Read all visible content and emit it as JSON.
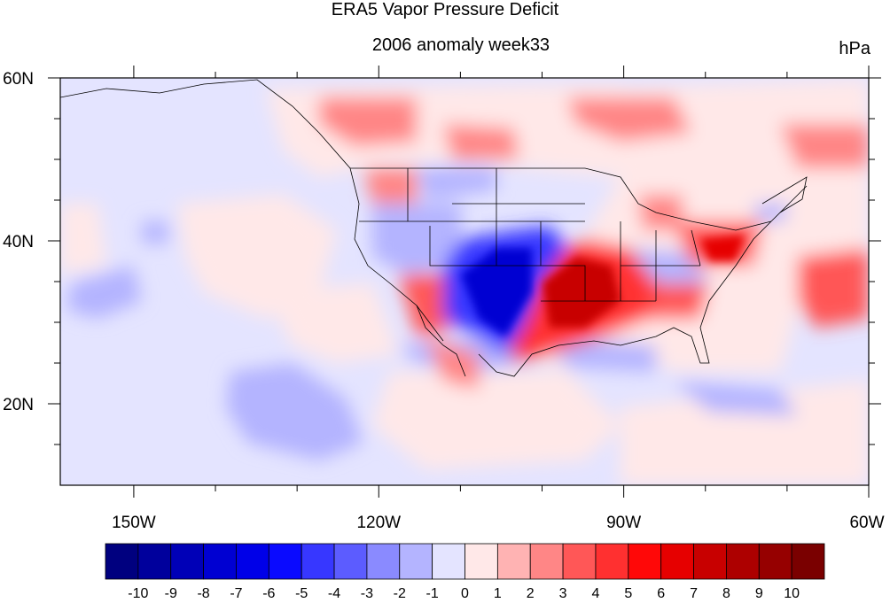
{
  "title": "ERA5 Vapor Pressure Deficit",
  "subtitle": "2006 anomaly week33",
  "units": "hPa",
  "map": {
    "lon_labels": [
      "150W",
      "120W",
      "90W",
      "60W"
    ],
    "lon_values": [
      -150,
      -120,
      -90,
      -60
    ],
    "lat_labels": [
      "60N",
      "40N",
      "20N"
    ],
    "lat_values": [
      60,
      40,
      20
    ],
    "lon_range": [
      -159,
      -60
    ],
    "lat_range": [
      10,
      60
    ]
  },
  "colorbar": {
    "levels": [
      "-10",
      "-9",
      "-8",
      "-7",
      "-6",
      "-5",
      "-4",
      "-3",
      "-2",
      "-1",
      "0",
      "1",
      "2",
      "3",
      "4",
      "5",
      "6",
      "7",
      "8",
      "9",
      "10"
    ],
    "colors": [
      "#00007f",
      "#00009c",
      "#0000b7",
      "#0000d2",
      "#0000e8",
      "#0a0aff",
      "#3737ff",
      "#5c5cff",
      "#8a8aff",
      "#b4b4ff",
      "#e4e4ff",
      "#ffe8e8",
      "#ffb3b3",
      "#ff8686",
      "#ff5757",
      "#ff3030",
      "#ff0808",
      "#e60000",
      "#c80000",
      "#ad0000",
      "#960000",
      "#7a0000"
    ]
  }
}
